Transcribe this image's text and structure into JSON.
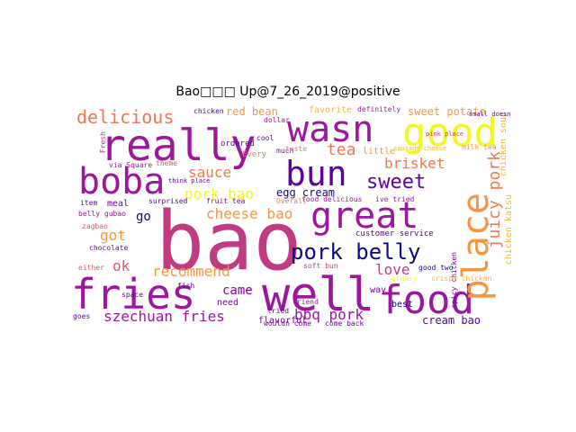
{
  "title": "Bao□□□ Up@7_26_2019@positive",
  "words": {
    "bao": "bao",
    "really": "really",
    "fries": "fries",
    "well": "well",
    "food": "food",
    "boba": "boba",
    "great": "great",
    "good": "good",
    "wasn": "wasn",
    "place": "place",
    "bun": "bun",
    "pork_belly": "pork belly",
    "sweet": "sweet",
    "brisket": "brisket",
    "tea": "tea",
    "delicious": "delicious",
    "juicy_pork": "juicy pork",
    "szechuan_fries": "szechuan fries",
    "bbq_pork": "bbq pork",
    "cheese_bao": "cheese bao",
    "pork_bao": "pork bao",
    "sauce": "sauce",
    "recommend": "recommend",
    "came": "came",
    "love": "love",
    "got": "got",
    "ok": "ok",
    "go": "go",
    "egg_cream": "egg cream",
    "cream_bao": "cream bao",
    "red_bean": "red bean",
    "sweet_potato": "sweet potato",
    "chicken_soup": "chicken soup",
    "chicken_katsu": "chicken katsu",
    "favorite": "favorite",
    "definitely": "definitely",
    "little": "little",
    "customer_service": "customer service",
    "flavorful": "flavorful",
    "soft_bun": "soft bun",
    "best": "best",
    "way": "way",
    "need": "need",
    "space": "space",
    "chocolate": "chocolate",
    "belly_gubao": "belly gubao",
    "meal": "meal",
    "item": "item",
    "zagbao": "zagbao",
    "tried": "tried",
    "come_back": "come back",
    "friend": "friend",
    "much": "much",
    "food_delicious": "food delicious",
    "ive_tried": "ive tried",
    "egg_cream_small": "Overall",
    "spicy_chicken": "spicy chicken",
    "crispy_chicken": "crispy chicken",
    "good_two": "good two",
    "surprised": "surprised",
    "fruit_tea": "fruit tea",
    "fish": "fish",
    "milk_tea": "milk tea",
    "taste": "taste",
    "ordered": "ordered",
    "dollar": "dollar",
    "wouldn_come": "wouldn come",
    "goes": "goes",
    "either": "either",
    "fresh": "Fresh",
    "via_square": "via Square",
    "chicken": "chicken",
    "small_doesn": "small doesn",
    "sausage_cheese": "sausage cheese",
    "greasy": "greasy",
    "cool": "cool",
    "every": "Every",
    "theme": "theme",
    "think_place": "think place",
    "pink_place": "pink place"
  },
  "colors": {
    "magenta": "#9c179e",
    "pink": "#c13b82",
    "rose": "#d8576b",
    "orange": "#ed7953",
    "amber": "#f89540",
    "yellow": "#f0f921",
    "gold": "#fdb42f",
    "indigo": "#0d0887",
    "purple": "#5c01a6",
    "violet": "#7e03a8"
  }
}
